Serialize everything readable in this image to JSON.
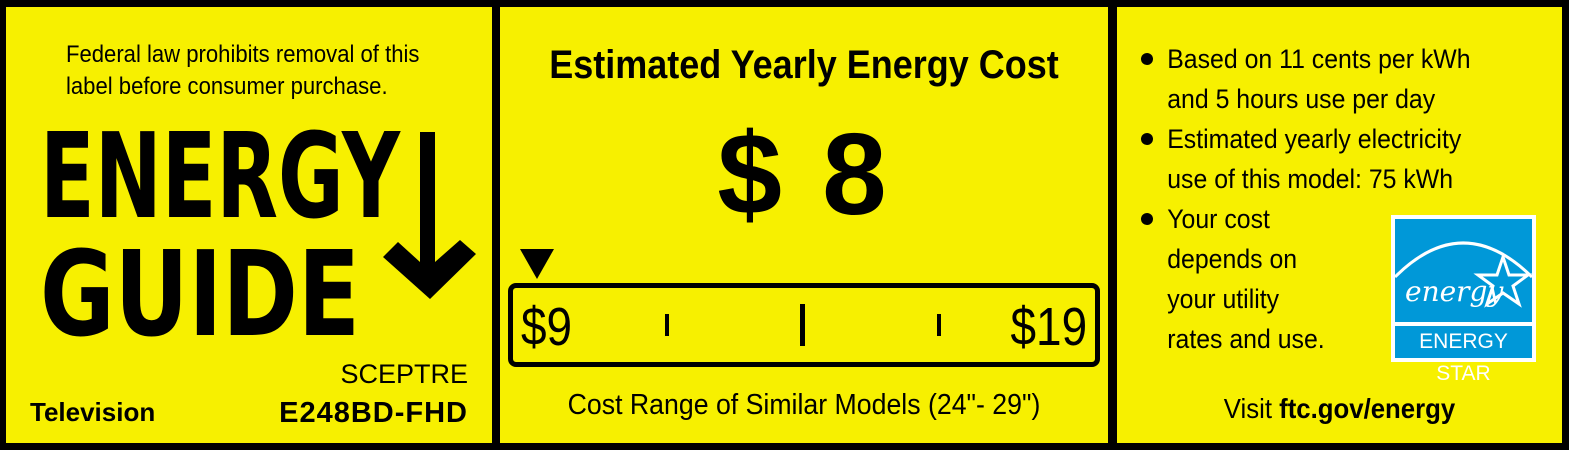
{
  "left": {
    "notice_line1": "Federal law prohibits removal of this",
    "notice_line2": "label before consumer purchase.",
    "logo_line1": "ENERGY",
    "logo_line2": "GUIDE",
    "brand": "SCEPTRE",
    "product_type": "Television",
    "model": "E248BD-FHD"
  },
  "middle": {
    "title": "Estimated Yearly Energy Cost",
    "cost": "$ 8",
    "range_low": "$9",
    "range_high": "$19",
    "range_caption": "Cost Range of Similar Models (24\"- 29\")",
    "indicator_position_value": 8
  },
  "right": {
    "bullets": [
      [
        "Based on 11 cents per kWh",
        "and 5 hours use per day"
      ],
      [
        "Estimated yearly electricity",
        "use of this model: 75 kWh"
      ],
      [
        "Your cost",
        "depends on",
        "your utility",
        "rates and use."
      ]
    ],
    "visit_prefix": "Visit ",
    "visit_link": "ftc.gov/energy",
    "energy_star_script": "energy",
    "energy_star_label": "ENERGY STAR"
  },
  "colors": {
    "label_yellow": "#f7f000",
    "energy_star_blue": "#0098d8"
  }
}
